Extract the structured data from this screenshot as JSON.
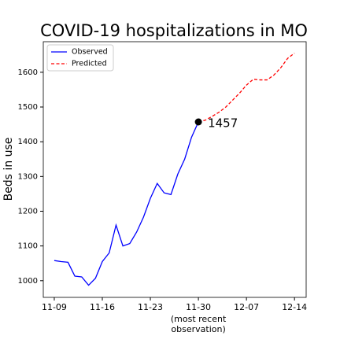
{
  "chart_data": {
    "type": "line",
    "title": "COVID-19 hospitalizations in MO",
    "y_label": "Beds in use",
    "x_annotation": [
      "(most recent",
      "observation)"
    ],
    "categories": [
      "11-09",
      null,
      null,
      null,
      null,
      null,
      null,
      "11-16",
      null,
      null,
      null,
      null,
      null,
      null,
      "11-23",
      null,
      null,
      null,
      null,
      null,
      null,
      "11-30",
      null,
      null,
      null,
      null,
      null,
      null,
      "12-07",
      null,
      null,
      null,
      null,
      null,
      null,
      "12-14"
    ],
    "series": [
      {
        "name": "Observed",
        "color": "#0000ff",
        "dash": "solid",
        "values": [
          1058,
          1055,
          1053,
          1013,
          1011,
          987,
          1007,
          1055,
          1080,
          1160,
          1100,
          1107,
          1140,
          1183,
          1237,
          1280,
          1253,
          1248,
          1307,
          1350,
          1413,
          1457,
          null,
          null,
          null,
          null,
          null,
          null,
          null,
          null,
          null,
          null,
          null,
          null,
          null,
          null
        ]
      },
      {
        "name": "Predicted",
        "color": "#ff0000",
        "dash": "dashed",
        "values": [
          null,
          null,
          null,
          null,
          null,
          null,
          null,
          null,
          null,
          null,
          null,
          null,
          null,
          null,
          null,
          null,
          null,
          null,
          null,
          null,
          null,
          1457,
          1462,
          1473,
          1485,
          1500,
          1520,
          1540,
          1563,
          1580,
          1578,
          1578,
          1592,
          1613,
          1640,
          1655
        ]
      }
    ],
    "highlight": {
      "series": 0,
      "index": 21
    },
    "xlim": [
      -1.6,
      36.7
    ],
    "ylim": [
      952,
      1688
    ],
    "yticks": [
      1000,
      1100,
      1200,
      1300,
      1400,
      1500,
      1600
    ],
    "legend": "upper left"
  }
}
